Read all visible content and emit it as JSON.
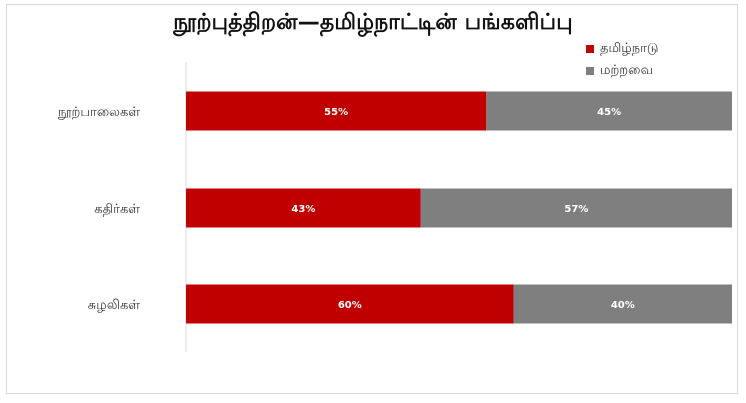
{
  "colors": {
    "tamilnadu": "#c00000",
    "others": "#7f7f7f"
  },
  "chart_data": {
    "type": "bar",
    "orientation": "horizontal",
    "stacked": true,
    "percent": true,
    "title": "நூற்புத்திறன்—தமிழ்நாட்டின் பங்களிப்பு",
    "categories": [
      "நூற்பாலைகள்",
      "கதிர்கள்",
      "சுழலிகள்"
    ],
    "series": [
      {
        "name": "தமிழ்நாடு",
        "color": "#c00000",
        "values": [
          55,
          43,
          60
        ],
        "labels": [
          "55%",
          "43%",
          "60%"
        ]
      },
      {
        "name": "மற்றவை",
        "color": "#7f7f7f",
        "values": [
          45,
          57,
          40
        ],
        "labels": [
          "45%",
          "57%",
          "40%"
        ]
      }
    ],
    "xlim": [
      0,
      100
    ],
    "grid": false,
    "legend_position": "top-right"
  }
}
